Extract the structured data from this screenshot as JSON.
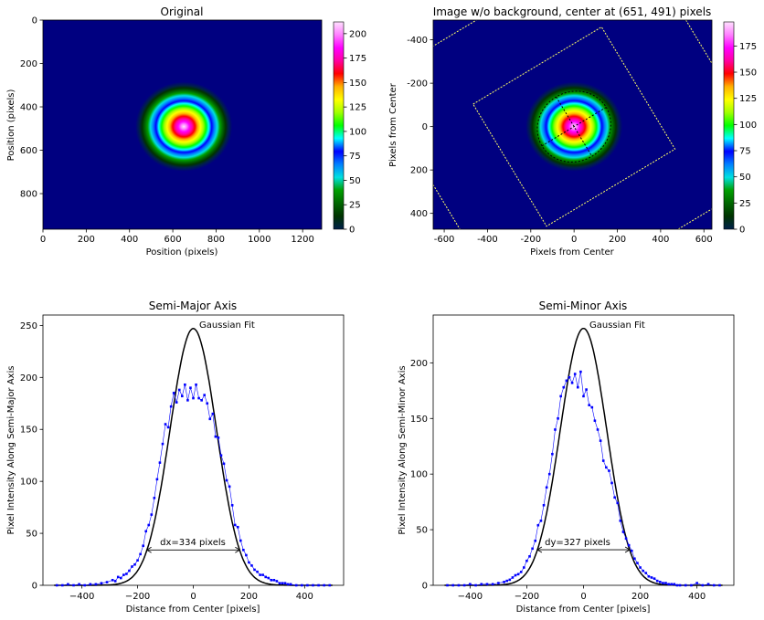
{
  "colors": {
    "cmap_stops": [
      "#00204a",
      "#003300",
      "#006600",
      "#00a000",
      "#00e0e0",
      "#0080ff",
      "#0000ff",
      "#00ffff",
      "#00ff00",
      "#a0ff00",
      "#ffff00",
      "#ffb000",
      "#ff0000",
      "#ff00a0",
      "#ff00ff",
      "#ff80ff",
      "#ffe0ff"
    ],
    "background_navy": "#000080",
    "fit_line": "#000000",
    "data_line": "#0000ff",
    "overlay_line": "#ffff66",
    "dashed_line": "#000000"
  },
  "chart_data": [
    {
      "type": "heatmap",
      "title": "Original",
      "xlabel": "Position (pixels)",
      "ylabel": "Position (pixels)",
      "xlim": [
        0,
        1288
      ],
      "ylim": [
        964,
        0
      ],
      "xticks": [
        0,
        200,
        400,
        600,
        800,
        1000,
        1200
      ],
      "yticks": [
        0,
        200,
        400,
        600,
        800
      ],
      "center": [
        651,
        491
      ],
      "colorbar": {
        "ticks": [
          0,
          25,
          50,
          75,
          100,
          125,
          150,
          175,
          200
        ],
        "max": 212
      }
    },
    {
      "type": "heatmap",
      "title": "Image w/o background, center at (651, 491) pixels",
      "xlabel": "Pixels from Center",
      "ylabel": "Pixels from Center",
      "xlim": [
        -651,
        637
      ],
      "ylim": [
        473,
        -491
      ],
      "xticks": [
        -600,
        -400,
        -200,
        0,
        200,
        400,
        600
      ],
      "yticks": [
        -400,
        -200,
        0,
        200,
        400
      ],
      "colorbar": {
        "ticks": [
          0,
          25,
          50,
          75,
          100,
          125,
          150,
          175
        ],
        "max": 198
      }
    },
    {
      "type": "line",
      "title": "Semi-Major Axis",
      "xlabel": "Distance from Center [pixels]",
      "ylabel": "Pixel Intensity Along Semi-Major Axis",
      "xlim": [
        -540,
        540
      ],
      "ylim": [
        0,
        260
      ],
      "xticks": [
        -400,
        -200,
        0,
        200,
        400
      ],
      "yticks": [
        0,
        50,
        100,
        150,
        200,
        250
      ],
      "fit_label": "Gaussian Fit",
      "width_label": "dx=334 pixels",
      "width_range": [
        -167,
        167
      ],
      "width_y": 34,
      "fit": {
        "amplitude": 247,
        "sigma": 83.5
      },
      "series": [
        {
          "x": [
            -490,
            -470,
            -450,
            -430,
            -410,
            -390,
            -370,
            -350,
            -330,
            -310,
            -290,
            -280,
            -270,
            -260,
            -250,
            -240,
            -230,
            -220,
            -210,
            -200,
            -190,
            -180,
            -170,
            -160,
            -150,
            -140,
            -130,
            -120,
            -110,
            -100,
            -90,
            -80,
            -70,
            -60,
            -50,
            -40,
            -30,
            -20,
            -10,
            0,
            10,
            20,
            30,
            40,
            50,
            60,
            70,
            80,
            90,
            100,
            110,
            120,
            130,
            140,
            150,
            160,
            170,
            180,
            190,
            200,
            210,
            220,
            230,
            240,
            250,
            260,
            270,
            280,
            290,
            300,
            310,
            320,
            330,
            340,
            350,
            370,
            390,
            410,
            430,
            450,
            470,
            490
          ],
          "values": [
            0,
            0,
            1,
            0,
            1,
            0,
            1,
            1,
            2,
            3,
            5,
            4,
            8,
            7,
            10,
            11,
            14,
            18,
            20,
            24,
            30,
            38,
            52,
            58,
            68,
            84,
            102,
            118,
            136,
            155,
            152,
            172,
            185,
            176,
            188,
            182,
            193,
            178,
            190,
            180,
            193,
            180,
            178,
            183,
            175,
            160,
            165,
            143,
            142,
            125,
            117,
            101,
            95,
            77,
            58,
            56,
            43,
            34,
            29,
            22,
            19,
            15,
            13,
            10,
            10,
            8,
            7,
            5,
            5,
            4,
            2,
            2,
            2,
            1,
            1,
            0,
            0,
            0,
            0,
            0,
            0,
            0
          ]
        }
      ]
    },
    {
      "type": "line",
      "title": "Semi-Minor Axis",
      "xlabel": "Distance from Center [pixels]",
      "ylabel": "Pixel Intensity Along Semi-Minor Axis",
      "xlim": [
        -530,
        530
      ],
      "ylim": [
        0,
        243
      ],
      "xticks": [
        -400,
        -200,
        0,
        200,
        400
      ],
      "yticks": [
        0,
        50,
        100,
        150,
        200
      ],
      "fit_label": "Gaussian Fit",
      "width_label": "dy=327 pixels",
      "width_range": [
        -163,
        163
      ],
      "width_y": 32,
      "fit": {
        "amplitude": 231,
        "sigma": 81.7
      },
      "series": [
        {
          "x": [
            -480,
            -460,
            -440,
            -420,
            -400,
            -380,
            -360,
            -340,
            -320,
            -300,
            -280,
            -270,
            -260,
            -250,
            -240,
            -230,
            -220,
            -210,
            -200,
            -190,
            -180,
            -170,
            -160,
            -150,
            -140,
            -130,
            -120,
            -110,
            -100,
            -90,
            -80,
            -70,
            -60,
            -50,
            -40,
            -30,
            -20,
            -10,
            0,
            10,
            20,
            30,
            40,
            50,
            60,
            70,
            80,
            90,
            100,
            110,
            120,
            130,
            140,
            150,
            160,
            170,
            180,
            190,
            200,
            210,
            220,
            230,
            240,
            250,
            260,
            270,
            280,
            290,
            300,
            310,
            320,
            330,
            340,
            360,
            380,
            400,
            420,
            440,
            460,
            480
          ],
          "values": [
            0,
            0,
            0,
            0,
            1,
            0,
            1,
            1,
            1,
            2,
            3,
            4,
            5,
            7,
            9,
            10,
            12,
            16,
            22,
            26,
            33,
            40,
            54,
            58,
            72,
            88,
            100,
            118,
            140,
            150,
            170,
            178,
            184,
            187,
            182,
            190,
            178,
            192,
            170,
            176,
            162,
            160,
            148,
            140,
            130,
            112,
            106,
            103,
            92,
            79,
            74,
            58,
            48,
            42,
            36,
            31,
            24,
            20,
            16,
            13,
            11,
            8,
            7,
            6,
            4,
            3,
            2,
            2,
            1,
            1,
            1,
            0,
            0,
            0,
            0,
            2,
            0,
            1,
            0,
            0
          ]
        }
      ]
    }
  ]
}
